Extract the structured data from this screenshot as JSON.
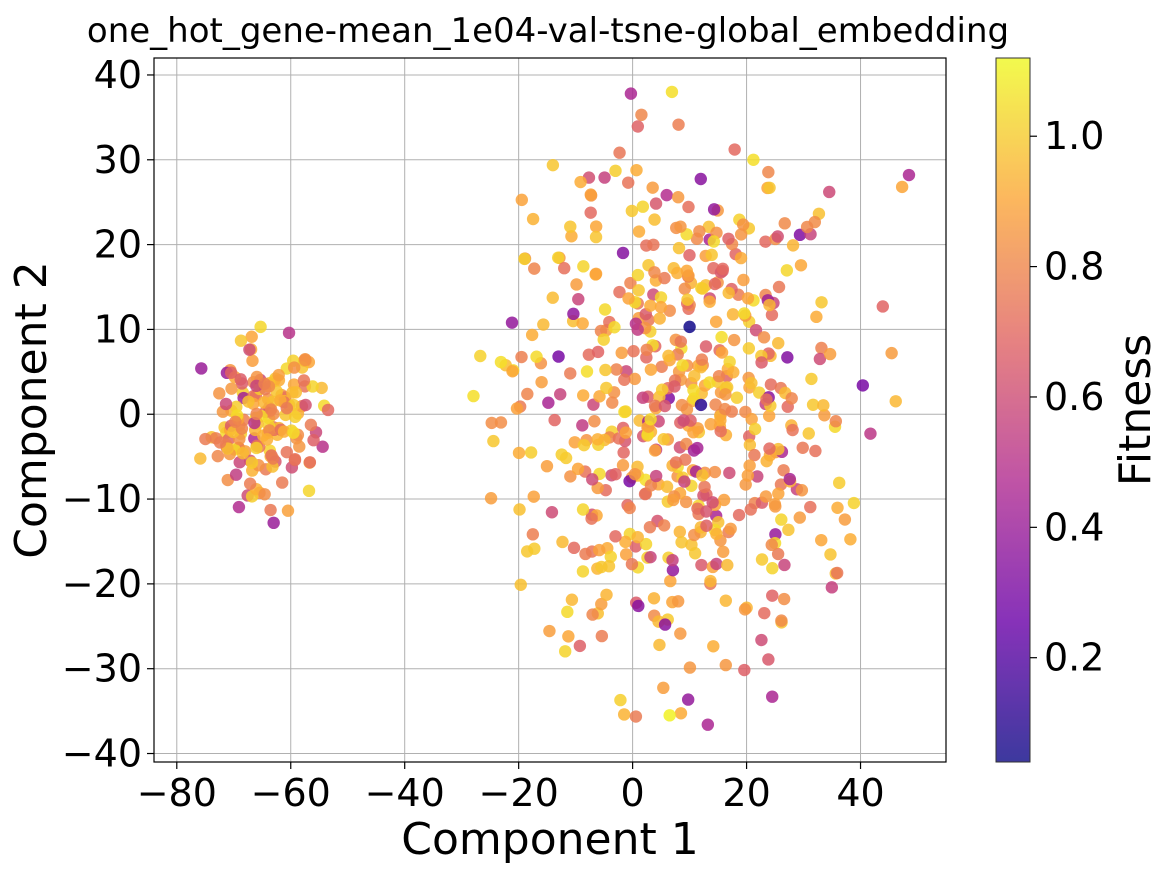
{
  "chart_data": {
    "type": "scatter",
    "title": "one_hot_gene-mean_1e04-val-tsne-global_embedding",
    "xlabel": "Component 1",
    "ylabel": "Component 2",
    "colorbar_label": "Fitness",
    "xlim": [
      -84,
      55
    ],
    "ylim": [
      -41,
      42
    ],
    "x_ticks": [
      -80,
      -60,
      -40,
      -20,
      0,
      20,
      40
    ],
    "y_ticks": [
      -40,
      -30,
      -20,
      -10,
      0,
      10,
      20,
      30,
      40
    ],
    "x_tick_labels": [
      "−80",
      "−60",
      "−40",
      "−20",
      "0",
      "20",
      "40"
    ],
    "y_tick_labels": [
      "−40",
      "−30",
      "−20",
      "−10",
      "0",
      "10",
      "20",
      "30",
      "40"
    ],
    "colorbar_range": [
      0.04,
      1.12
    ],
    "colorbar_ticks": [
      0.2,
      0.4,
      0.6,
      0.8,
      1.0
    ],
    "colorbar_tick_labels": [
      "0.2",
      "0.4",
      "0.6",
      "0.8",
      "1.0"
    ],
    "colormap": "plasma",
    "grid": true,
    "clusters": [
      {
        "name": "",
        "center": [
          -65,
          -1
        ],
        "spread": [
          5,
          5
        ],
        "count": 170
      },
      {
        "name": "",
        "center": [
          8,
          0
        ],
        "spread": [
          16,
          16
        ],
        "count": 560
      }
    ],
    "highlighted_points": [
      {
        "x": 10,
        "y": 10.3,
        "fitness": 0.05
      },
      {
        "x": 12,
        "y": 1.1,
        "fitness": 0.1
      },
      {
        "x": -0.3,
        "y": 37.8,
        "fitness": 0.45
      },
      {
        "x": 48.5,
        "y": 28.2,
        "fitness": 0.45
      },
      {
        "x": -13,
        "y": 6.8,
        "fitness": 0.3
      },
      {
        "x": 40.4,
        "y": 3.4,
        "fitness": 0.3
      },
      {
        "x": 13.2,
        "y": -36.6,
        "fitness": 0.45
      },
      {
        "x": 24.5,
        "y": -33.3,
        "fitness": 0.45
      },
      {
        "x": -75.7,
        "y": 5.4,
        "fitness": 0.4
      },
      {
        "x": -60.3,
        "y": 9.6,
        "fitness": 0.5
      },
      {
        "x": -63,
        "y": -12.8,
        "fitness": 0.4
      },
      {
        "x": 1,
        "y": -22.6,
        "fitness": 0.35
      },
      {
        "x": 5.7,
        "y": -24.8,
        "fitness": 0.35
      },
      {
        "x": 21.2,
        "y": 30,
        "fitness": 1.05
      },
      {
        "x": 6.9,
        "y": 38,
        "fitness": 1.05
      },
      {
        "x": 6.5,
        "y": -35.5,
        "fitness": 1.1
      },
      {
        "x": 47.3,
        "y": 26.8,
        "fitness": 0.9
      }
    ]
  }
}
